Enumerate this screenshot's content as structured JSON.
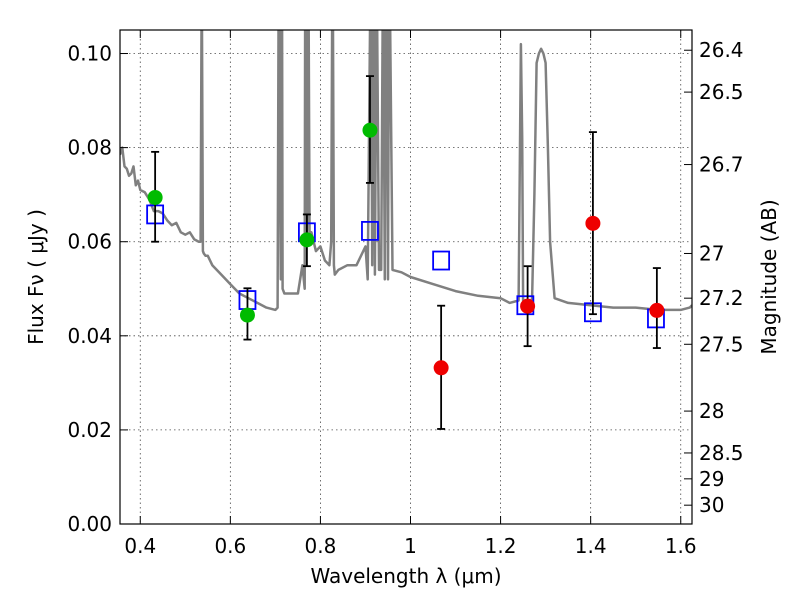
{
  "chart_data": {
    "type": "scatter",
    "xlabel": "Wavelength  λ (μm)",
    "ylabel": "Flux  Fν  ( μJy )",
    "ylabel_right": "Magnitude (AB)",
    "xlim": [
      0.355,
      1.625
    ],
    "ylim": [
      0,
      0.105
    ],
    "x_ticks": [
      0.4,
      0.6,
      0.8,
      1,
      1.2,
      1.4,
      1.6
    ],
    "x_tick_labels": [
      "0.4",
      "0.6",
      "0.8",
      "1",
      "1.2",
      "1.4",
      "1.6"
    ],
    "y_ticks": [
      0,
      0.02,
      0.04,
      0.06,
      0.08,
      0.1
    ],
    "y_tick_labels": [
      "0.00",
      "0.02",
      "0.04",
      "0.06",
      "0.08",
      "0.10"
    ],
    "right_ticks": [
      {
        "flux": 0.1007,
        "label": "26.4"
      },
      {
        "flux": 0.0918,
        "label": "26.5"
      },
      {
        "flux": 0.0764,
        "label": "26.7"
      },
      {
        "flux": 0.0575,
        "label": "27"
      },
      {
        "flux": 0.048,
        "label": "27.2"
      },
      {
        "flux": 0.0382,
        "label": "27.5"
      },
      {
        "flux": 0.024,
        "label": "28"
      },
      {
        "flux": 0.0151,
        "label": "28.5"
      },
      {
        "flux": 0.0096,
        "label": "29"
      },
      {
        "flux": 0.004,
        "label": "30"
      }
    ],
    "grid": true,
    "series": [
      {
        "kind": "spectrum",
        "color": "#808080",
        "x": [
          0.355,
          0.36,
          0.365,
          0.37,
          0.375,
          0.38,
          0.385,
          0.39,
          0.395,
          0.4,
          0.41,
          0.42,
          0.43,
          0.44,
          0.45,
          0.46,
          0.47,
          0.48,
          0.49,
          0.5,
          0.51,
          0.52,
          0.53,
          0.534,
          0.536,
          0.537,
          0.539,
          0.541,
          0.545,
          0.55,
          0.56,
          0.58,
          0.6,
          0.62,
          0.64,
          0.66,
          0.68,
          0.7,
          0.705,
          0.707,
          0.708,
          0.712,
          0.713,
          0.715,
          0.716,
          0.72,
          0.73,
          0.74,
          0.75,
          0.76,
          0.765,
          0.766,
          0.768,
          0.77,
          0.772,
          0.774,
          0.776,
          0.78,
          0.79,
          0.8,
          0.81,
          0.82,
          0.824,
          0.826,
          0.828,
          0.83,
          0.832,
          0.84,
          0.86,
          0.88,
          0.9,
          0.905,
          0.91,
          0.913,
          0.915,
          0.917,
          0.919,
          0.921,
          0.924,
          0.926,
          0.93,
          0.935,
          0.938,
          0.94,
          0.943,
          0.945,
          0.948,
          0.95,
          0.952,
          0.955,
          0.96,
          0.98,
          1.0,
          1.05,
          1.1,
          1.15,
          1.2,
          1.22,
          1.24,
          1.245,
          1.248,
          1.25,
          1.255,
          1.26,
          1.265,
          1.27,
          1.275,
          1.28,
          1.285,
          1.29,
          1.295,
          1.3,
          1.305,
          1.31,
          1.32,
          1.35,
          1.4,
          1.45,
          1.5,
          1.55,
          1.58,
          1.6,
          1.62,
          1.625
        ],
        "y": [
          0.0785,
          0.08,
          0.076,
          0.0755,
          0.074,
          0.0745,
          0.076,
          0.072,
          0.073,
          0.071,
          0.0705,
          0.069,
          0.0665,
          0.0665,
          0.066,
          0.0645,
          0.0635,
          0.064,
          0.062,
          0.0615,
          0.062,
          0.0605,
          0.06,
          0.06,
          0.105,
          0.105,
          0.058,
          0.0575,
          0.057,
          0.057,
          0.055,
          0.053,
          0.051,
          0.049,
          0.048,
          0.047,
          0.046,
          0.0455,
          0.046,
          0.105,
          0.105,
          0.052,
          0.105,
          0.105,
          0.05,
          0.049,
          0.049,
          0.049,
          0.049,
          0.055,
          0.05,
          0.105,
          0.105,
          0.06,
          0.105,
          0.105,
          0.061,
          0.062,
          0.058,
          0.059,
          0.056,
          0.055,
          0.06,
          0.105,
          0.105,
          0.055,
          0.053,
          0.054,
          0.055,
          0.055,
          0.059,
          0.052,
          0.105,
          0.105,
          0.055,
          0.105,
          0.105,
          0.053,
          0.105,
          0.105,
          0.054,
          0.054,
          0.105,
          0.105,
          0.052,
          0.105,
          0.105,
          0.052,
          0.105,
          0.105,
          0.054,
          0.0535,
          0.0525,
          0.051,
          0.0495,
          0.0485,
          0.048,
          0.047,
          0.0475,
          0.102,
          0.082,
          0.0475,
          0.046,
          0.0455,
          0.046,
          0.048,
          0.07,
          0.098,
          0.1,
          0.101,
          0.1,
          0.098,
          0.08,
          0.06,
          0.048,
          0.047,
          0.0465,
          0.046,
          0.046,
          0.0455,
          0.0455,
          0.0455,
          0.046,
          0.0465
        ]
      },
      {
        "kind": "model-squares",
        "color": "#0000ff",
        "x": [
          0.433,
          0.638,
          0.77,
          0.91,
          1.068,
          1.255,
          1.405,
          1.545
        ],
        "values": [
          0.0658,
          0.0476,
          0.062,
          0.0623,
          0.056,
          0.0465,
          0.045,
          0.0437
        ]
      },
      {
        "kind": "optical-points",
        "color": "#00bb00",
        "x": [
          0.433,
          0.638,
          0.77,
          0.91
        ],
        "values": [
          0.0694,
          0.0444,
          0.0604,
          0.0837
        ],
        "err_low": [
          0.0094,
          0.0052,
          0.0056,
          0.0112
        ],
        "err_high": [
          0.0097,
          0.0057,
          0.0054,
          0.0115
        ]
      },
      {
        "kind": "infrared-points",
        "color": "#ee0000",
        "x": [
          1.068,
          1.26,
          1.405,
          1.547
        ],
        "values": [
          0.0332,
          0.0463,
          0.0639,
          0.0454
        ],
        "err_low": [
          0.013,
          0.0085,
          0.0193,
          0.008
        ],
        "err_high": [
          0.0132,
          0.0085,
          0.0194,
          0.009
        ]
      }
    ]
  }
}
